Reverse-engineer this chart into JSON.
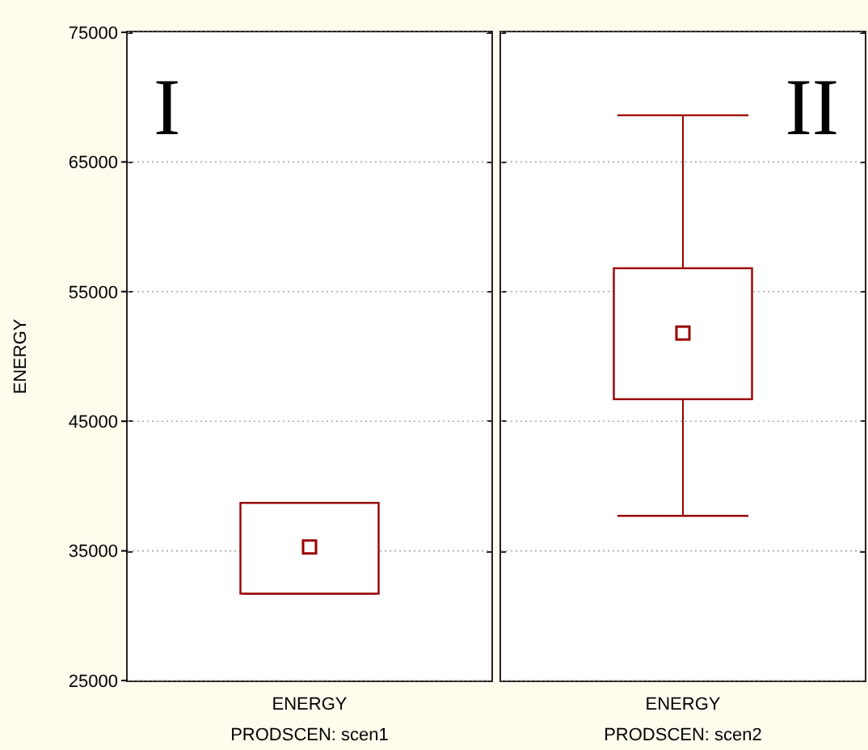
{
  "chart_data": {
    "type": "box",
    "categories": [
      "ENERGY\nPRODSCEN: scen1",
      "ENERGY\nPRODSCEN: scen2"
    ],
    "ylabel": "ENERGY",
    "annotations": [
      "I",
      "II"
    ],
    "color": "#990000",
    "ylim": [
      25000,
      75000
    ],
    "yticks": [
      25000,
      35000,
      45000,
      55000,
      65000,
      75000
    ],
    "grid": "y",
    "marker": "square",
    "boxes": [
      {
        "low": 31700,
        "q1": 31700,
        "median": 35300,
        "q3": 38700,
        "high": 38700
      },
      {
        "low": 37700,
        "q1": 46700,
        "median": 51800,
        "q3": 56800,
        "high": 68600
      }
    ]
  }
}
